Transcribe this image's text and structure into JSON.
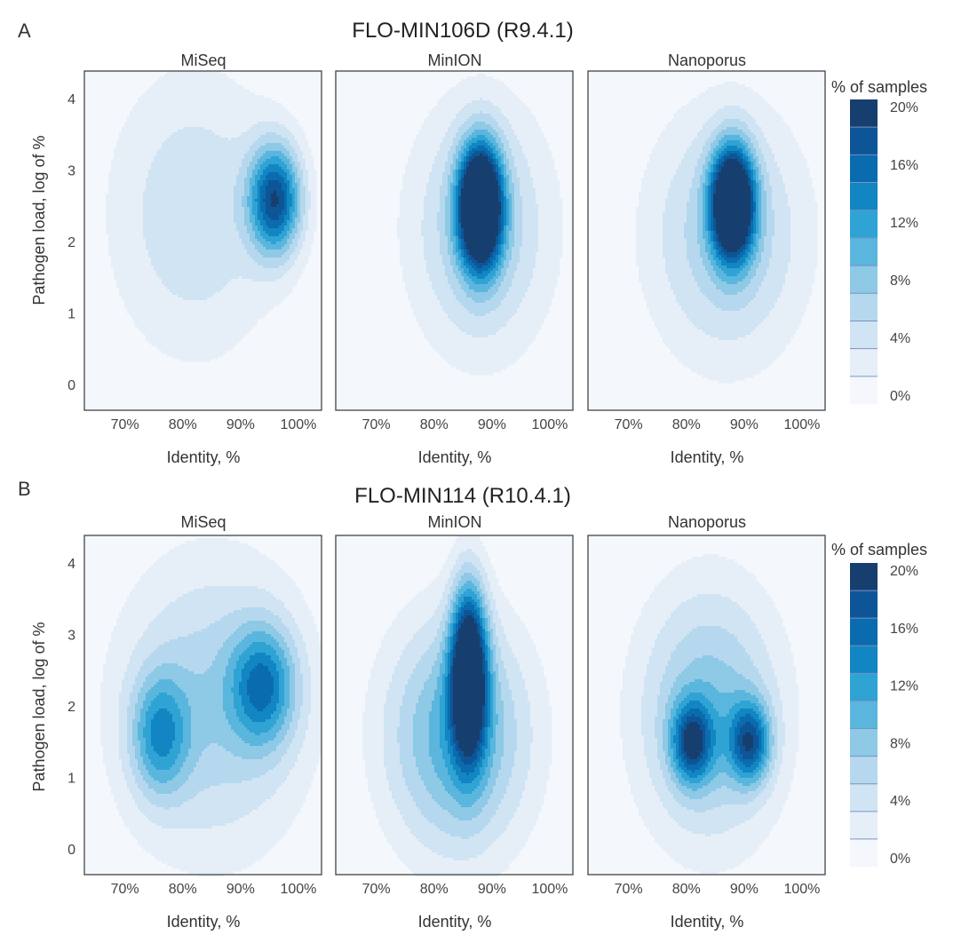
{
  "panels": [
    {
      "label": "A",
      "title": "FLO-MIN106D (R9.4.1)",
      "ylabel": "Pathogen load, log of %",
      "xlabel": "Identity, %",
      "legend_title": "% of samples",
      "subplots": [
        "MiSeq",
        "MinION",
        "Nanoporus"
      ]
    },
    {
      "label": "B",
      "title": "FLO-MIN114 (R10.4.1)",
      "ylabel": "Pathogen load, log of %",
      "xlabel": "Identity, %",
      "legend_title": "% of samples",
      "subplots": [
        "MiSeq",
        "MinION",
        "Nanoporus"
      ]
    }
  ],
  "chart_data": {
    "type": "heatmap",
    "subtype": "2d-density-contour",
    "x_ticks": [
      "70%",
      "80%",
      "90%",
      "100%"
    ],
    "x_tick_values": [
      70,
      80,
      90,
      100
    ],
    "xlim": [
      63,
      104
    ],
    "y_ticks": [
      "0",
      "1",
      "2",
      "3",
      "4"
    ],
    "y_tick_values": [
      0,
      1,
      2,
      3,
      4
    ],
    "ylim": [
      -0.35,
      4.4
    ],
    "legend": {
      "title": "% of samples",
      "labels": [
        "20%",
        "16%",
        "12%",
        "8%",
        "4%",
        "0%"
      ],
      "levels": [
        0,
        2,
        4,
        6,
        8,
        10,
        12,
        14,
        16,
        18,
        20
      ],
      "colors": [
        "#f4f8fc",
        "#e6eff8",
        "#d0e4f3",
        "#b6d8ee",
        "#8ec9e6",
        "#5bb6de",
        "#2fa3d4",
        "#1286c2",
        "#0a6cae",
        "#0d5597",
        "#163f6f"
      ],
      "line_color": "#7b93c6"
    },
    "panels": [
      {
        "label": "A",
        "subplots": [
          {
            "name": "MiSeq",
            "peaks": [
              {
                "x": 82,
                "y": 2.4,
                "sx": 11,
                "sy": 1.5,
                "amp": 3
              },
              {
                "x": 96,
                "y": 2.6,
                "sx": 3.2,
                "sy": 0.55,
                "amp": 9
              }
            ]
          },
          {
            "name": "MinION",
            "peaks": [
              {
                "x": 88,
                "y": 2.2,
                "sx": 9,
                "sy": 1.3,
                "amp": 4
              },
              {
                "x": 88,
                "y": 2.5,
                "sx": 2.6,
                "sy": 0.6,
                "amp": 15
              }
            ]
          },
          {
            "name": "Nanoporus",
            "peaks": [
              {
                "x": 87,
                "y": 2.1,
                "sx": 10,
                "sy": 1.3,
                "amp": 4
              },
              {
                "x": 88,
                "y": 2.55,
                "sx": 2.6,
                "sy": 0.55,
                "amp": 14
              }
            ]
          }
        ]
      },
      {
        "label": "B",
        "subplots": [
          {
            "name": "MiSeq",
            "peaks": [
              {
                "x": 85,
                "y": 2.0,
                "sx": 12,
                "sy": 1.5,
                "amp": 4
              },
              {
                "x": 76,
                "y": 1.6,
                "sx": 3.5,
                "sy": 0.6,
                "amp": 5
              },
              {
                "x": 94,
                "y": 2.3,
                "sx": 4,
                "sy": 0.6,
                "amp": 6
              }
            ]
          },
          {
            "name": "MinION",
            "peaks": [
              {
                "x": 84,
                "y": 1.6,
                "sx": 9,
                "sy": 1.2,
                "amp": 6
              },
              {
                "x": 86,
                "y": 2.5,
                "sx": 2.2,
                "sy": 0.85,
                "amp": 12
              }
            ]
          },
          {
            "name": "Nanoporus",
            "peaks": [
              {
                "x": 84,
                "y": 1.9,
                "sx": 9,
                "sy": 1.3,
                "amp": 5
              },
              {
                "x": 81,
                "y": 1.5,
                "sx": 2.5,
                "sy": 0.4,
                "amp": 7
              },
              {
                "x": 91,
                "y": 1.5,
                "sx": 2.5,
                "sy": 0.4,
                "amp": 7
              }
            ]
          }
        ]
      }
    ]
  }
}
